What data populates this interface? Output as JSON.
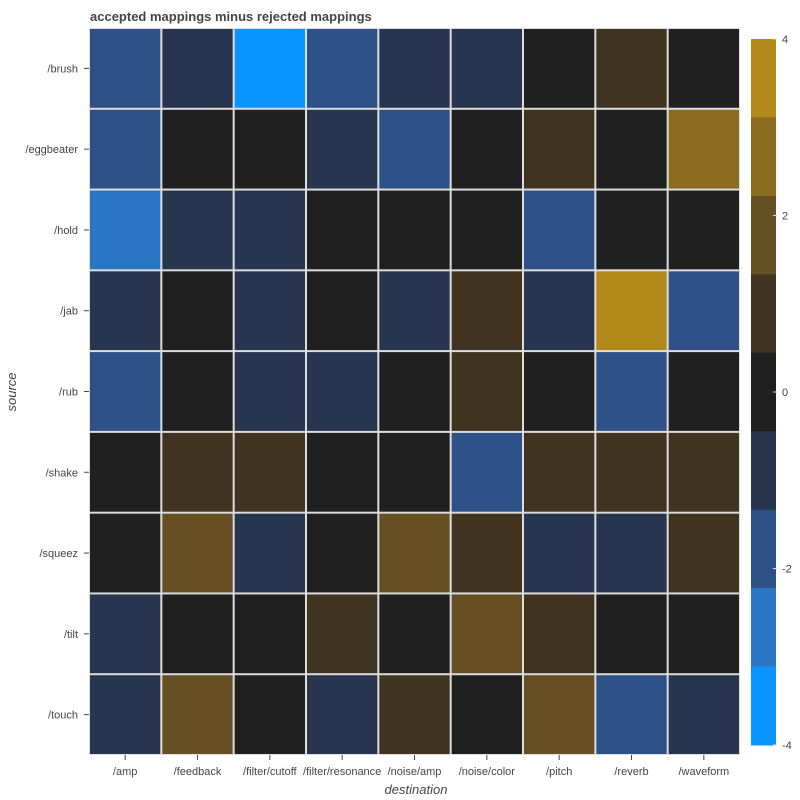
{
  "chart_data": {
    "type": "heatmap",
    "title": "accepted mappings minus rejected mappings",
    "xlabel": "destination",
    "ylabel": "source",
    "x_categories": [
      "/amp",
      "/feedback",
      "/filter/cutoff",
      "/filter/resonance",
      "/noise/amp",
      "/noise/color",
      "/pitch",
      "/reverb",
      "/waveform"
    ],
    "y_categories": [
      "/brush",
      "/eggbeater",
      "/hold",
      "/jab",
      "/rub",
      "/shake",
      "/squeez",
      "/tilt",
      "/touch"
    ],
    "values": [
      [
        -2,
        -1,
        -4,
        -2,
        -1,
        -1,
        0,
        1,
        0
      ],
      [
        -2,
        0,
        0,
        -1,
        -2,
        0,
        1,
        0,
        3
      ],
      [
        -3,
        -1,
        -1,
        0,
        0,
        0,
        -2,
        0,
        0
      ],
      [
        -1,
        0,
        -1,
        0,
        -1,
        1,
        -1,
        4,
        -2
      ],
      [
        -2,
        0,
        -1,
        -1,
        0,
        1,
        0,
        -2,
        0
      ],
      [
        0,
        1,
        1,
        0,
        0,
        -2,
        1,
        1,
        1
      ],
      [
        0,
        2,
        -1,
        0,
        2,
        1,
        -1,
        -1,
        1
      ],
      [
        -1,
        0,
        0,
        1,
        0,
        2,
        1,
        0,
        0
      ],
      [
        -1,
        2,
        0,
        -1,
        1,
        0,
        2,
        -2,
        -1
      ]
    ],
    "colorbar": {
      "range": [
        -4,
        4
      ],
      "ticks": [
        4,
        2,
        0,
        -2,
        -4
      ],
      "bins": [
        {
          "level": 4,
          "color": "#b38a1a"
        },
        {
          "level": 3,
          "color": "#8c6d20"
        },
        {
          "level": 2,
          "color": "#664f22"
        },
        {
          "level": 1,
          "color": "#403420"
        },
        {
          "level": 0,
          "color": "#202020"
        },
        {
          "level": -1,
          "color": "#27354e"
        },
        {
          "level": -2,
          "color": "#2e5287"
        },
        {
          "level": -3,
          "color": "#2a76c5"
        },
        {
          "level": -4,
          "color": "#0a94fe"
        }
      ]
    },
    "grid": false
  }
}
